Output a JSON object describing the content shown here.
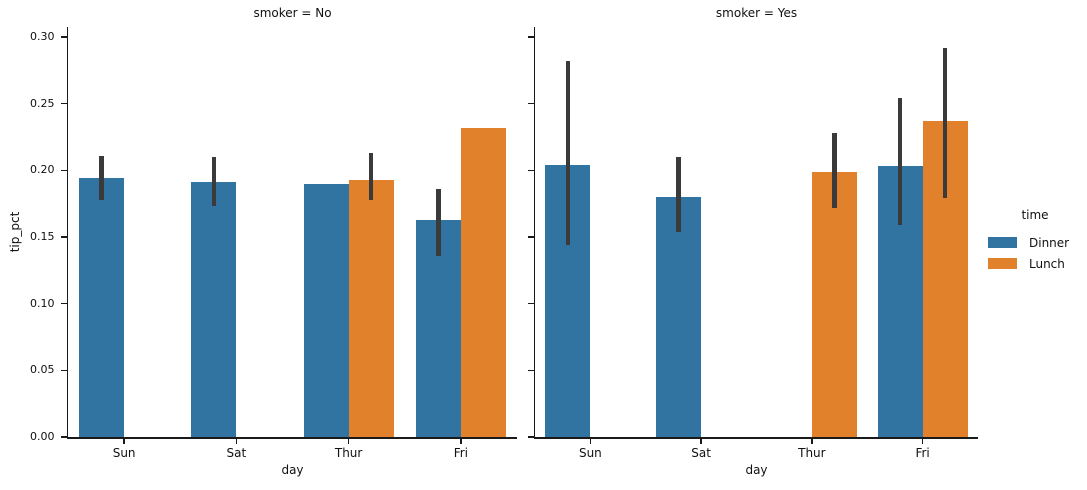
{
  "chart_data": {
    "type": "bar",
    "facet_by": "smoker",
    "xlabel": "day",
    "ylabel": "tip_pct",
    "categories": [
      "Sun",
      "Sat",
      "Thur",
      "Fri"
    ],
    "ylim": [
      0,
      0.3075
    ],
    "grid": false,
    "yticks": [
      {
        "label": "0.00",
        "value": 0.0
      },
      {
        "label": "0.05",
        "value": 0.05
      },
      {
        "label": "0.10",
        "value": 0.1
      },
      {
        "label": "0.15",
        "value": 0.15
      },
      {
        "label": "0.20",
        "value": 0.2
      },
      {
        "label": "0.25",
        "value": 0.25
      },
      {
        "label": "0.30",
        "value": 0.3
      }
    ],
    "legend": {
      "title": "time",
      "position": "right",
      "entries": [
        {
          "label": "Dinner",
          "color": "#3274a1"
        },
        {
          "label": "Lunch",
          "color": "#e1812c"
        }
      ]
    },
    "error_bar_color": "#3a3a3a",
    "facets": [
      {
        "title": "smoker = No",
        "series": [
          {
            "name": "Dinner",
            "color": "#3274a1",
            "values": [
              0.194,
              0.191,
              0.19,
              0.163
            ],
            "ci_low": [
              0.178,
              0.173,
              null,
              0.136
            ],
            "ci_high": [
              0.211,
              0.21,
              null,
              0.186
            ]
          },
          {
            "name": "Lunch",
            "color": "#e1812c",
            "values": [
              null,
              null,
              0.193,
              0.232
            ],
            "ci_low": [
              null,
              null,
              0.178,
              null
            ],
            "ci_high": [
              null,
              null,
              0.213,
              null
            ]
          }
        ]
      },
      {
        "title": "smoker = Yes",
        "series": [
          {
            "name": "Dinner",
            "color": "#3274a1",
            "values": [
              0.204,
              0.18,
              null,
              0.203
            ],
            "ci_low": [
              0.144,
              0.154,
              null,
              0.159
            ],
            "ci_high": [
              0.282,
              0.21,
              null,
              0.254
            ]
          },
          {
            "name": "Lunch",
            "color": "#e1812c",
            "values": [
              null,
              null,
              0.199,
              0.237
            ],
            "ci_low": [
              null,
              null,
              0.172,
              0.179
            ],
            "ci_high": [
              null,
              null,
              0.228,
              0.292
            ]
          }
        ]
      }
    ]
  }
}
